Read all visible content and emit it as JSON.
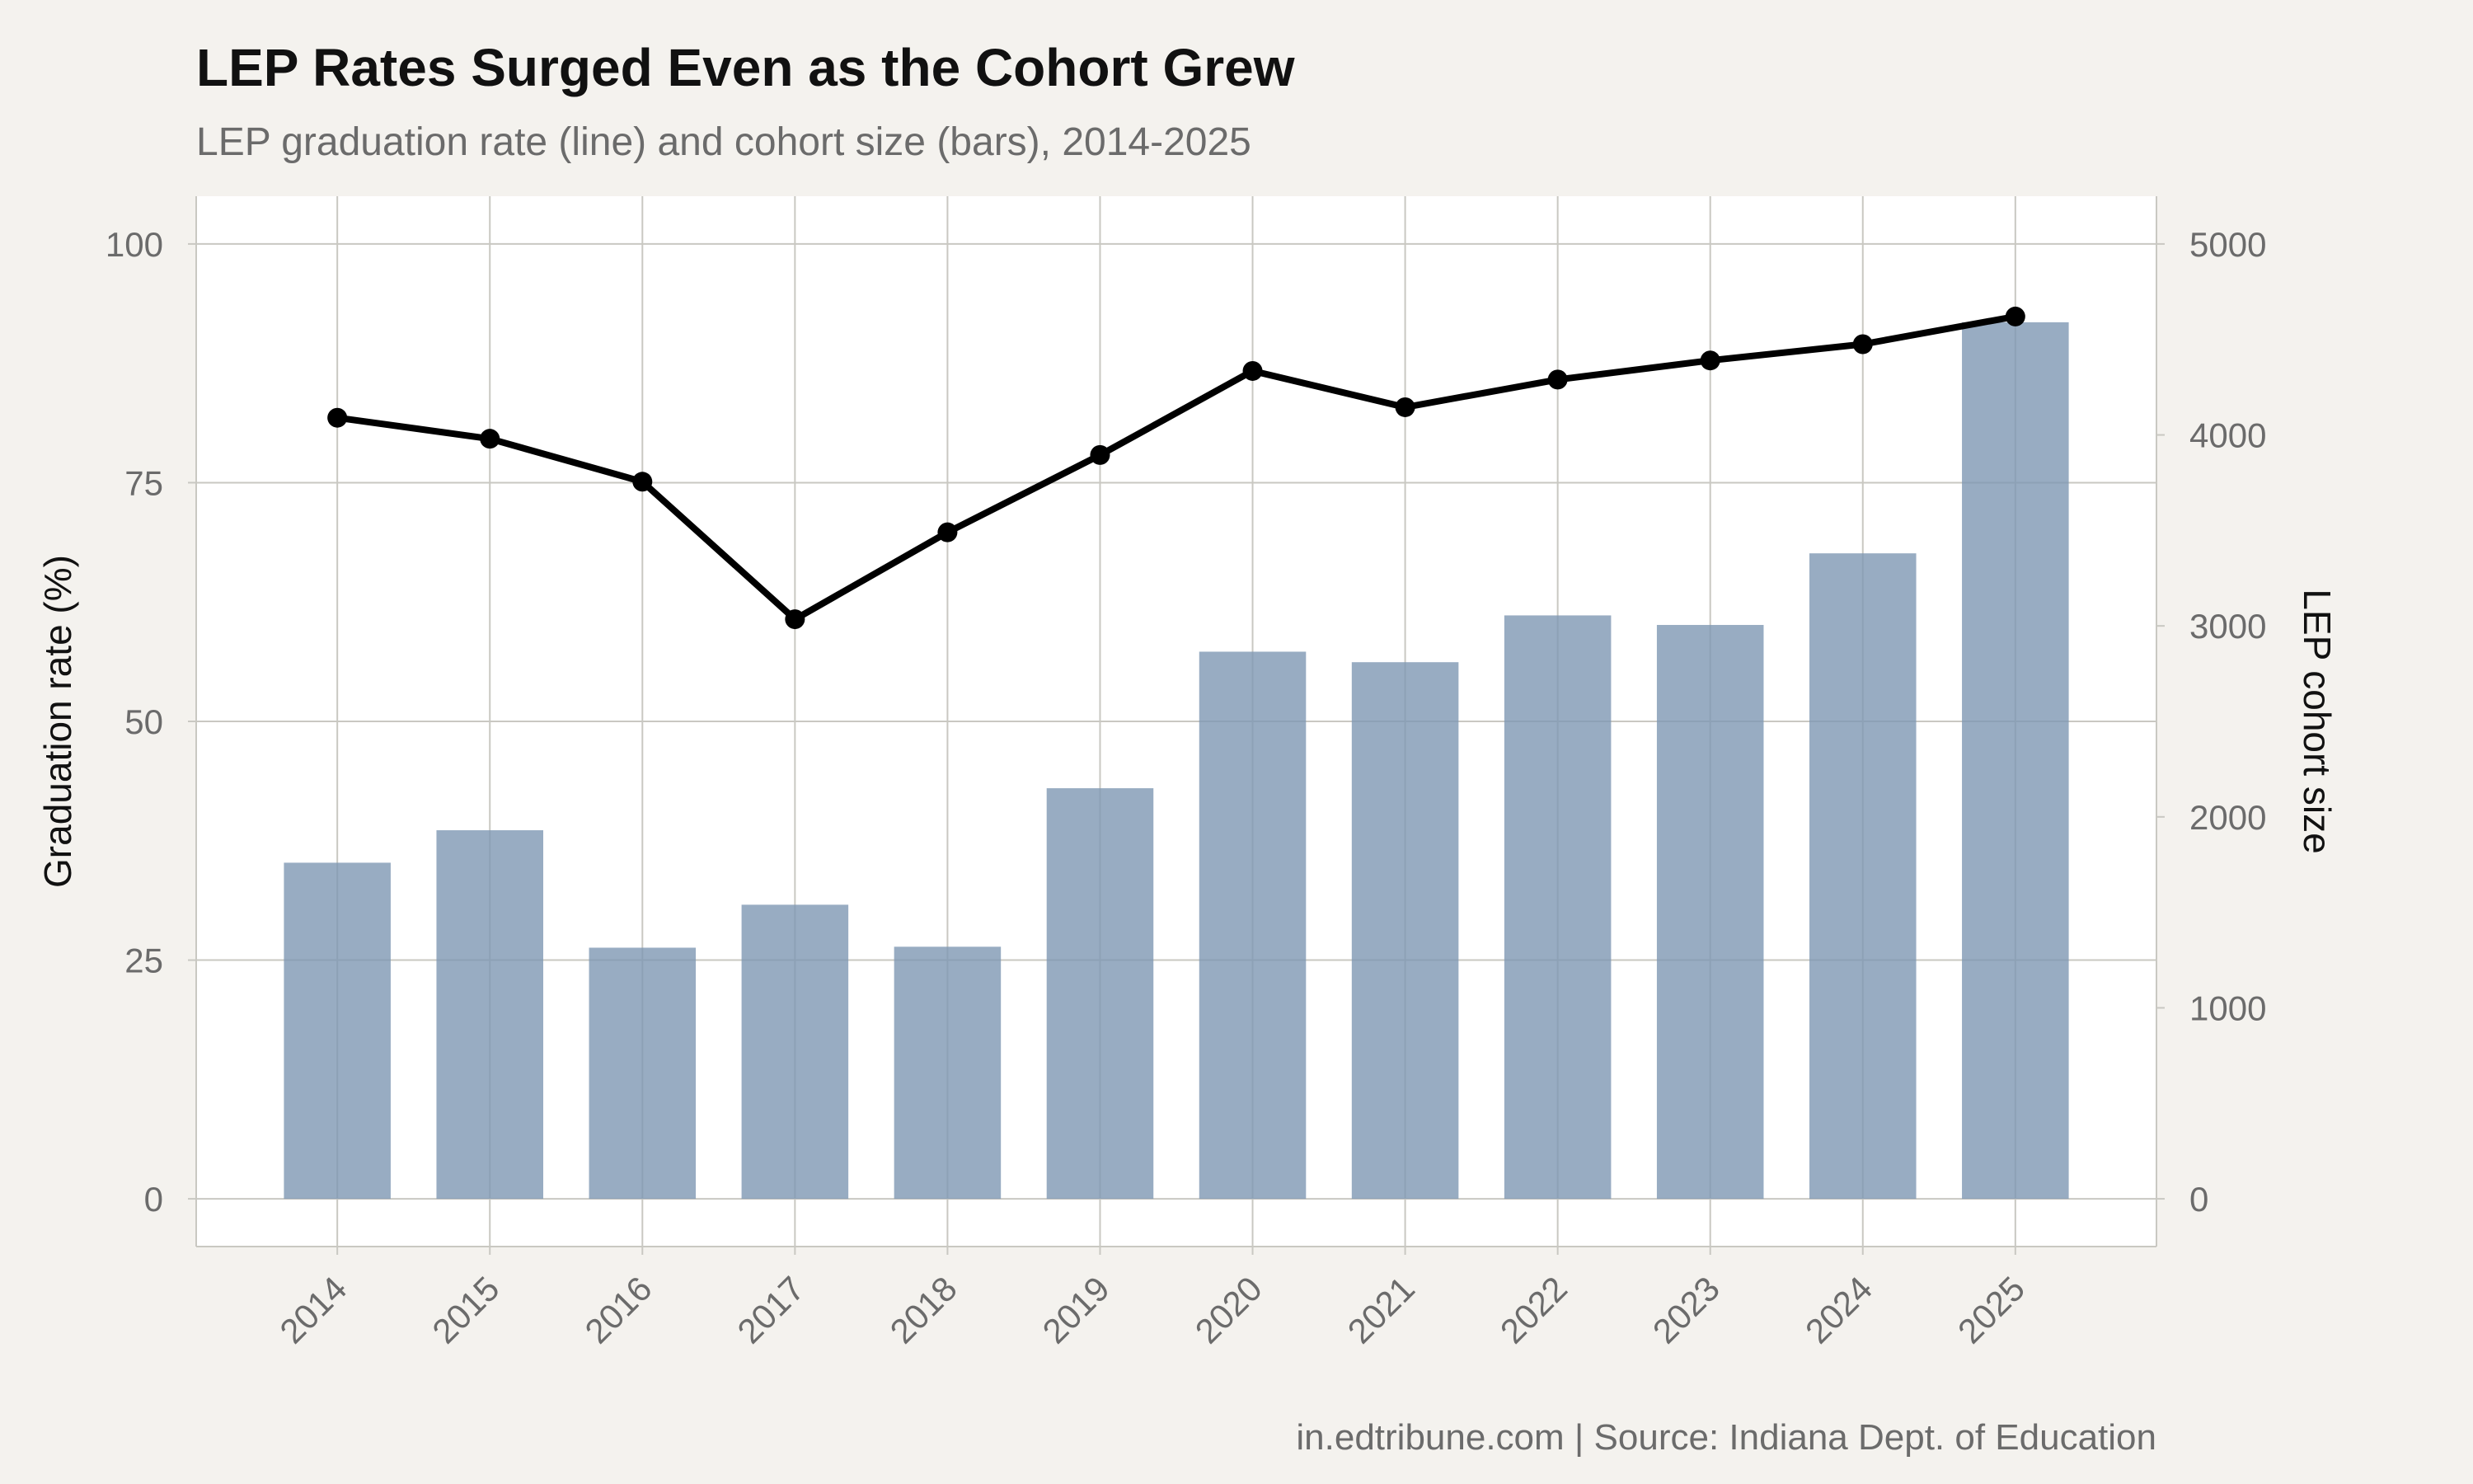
{
  "title": "LEP Rates Surged Even as the Cohort Grew",
  "subtitle": "LEP graduation rate (line) and cohort size (bars), 2014-2025",
  "caption": "in.edtribune.com | Source: Indiana Dept. of Education",
  "colors": {
    "background": "#f4f2ee",
    "panel": "#ffffff",
    "grid": "#c9c8c2",
    "bar": "#7e97b3",
    "line": "#000000",
    "text": "#6b6b6b",
    "title": "#111111"
  },
  "chart_data": {
    "type": "bar+line",
    "categories": [
      "2014",
      "2015",
      "2016",
      "2017",
      "2018",
      "2019",
      "2020",
      "2021",
      "2022",
      "2023",
      "2024",
      "2025"
    ],
    "series": [
      {
        "type": "bar",
        "axis": "right",
        "values": [
          1760,
          1930,
          1315,
          1540,
          1320,
          2150,
          2865,
          2810,
          3055,
          3005,
          3380,
          4590
        ]
      },
      {
        "type": "line",
        "axis": "left",
        "values": [
          81.8,
          79.6,
          75.1,
          60.7,
          69.8,
          77.9,
          86.7,
          82.9,
          85.8,
          87.8,
          89.5,
          92.4
        ]
      }
    ],
    "ylabel": "Graduation rate (%)",
    "ylabel_right": "LEP cohort size",
    "ylim": [
      -5,
      105
    ],
    "ylim_right": [
      -250,
      5250
    ],
    "yticks": [
      "0",
      "25",
      "50",
      "75",
      "100"
    ],
    "yticks_right": [
      "0",
      "1000",
      "2000",
      "3000",
      "4000",
      "5000"
    ],
    "grid": true,
    "legend": "none"
  }
}
